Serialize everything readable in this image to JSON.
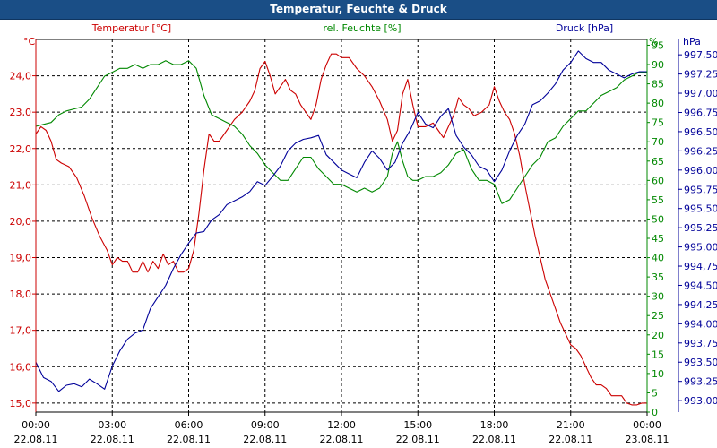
{
  "chart_data": {
    "type": "line",
    "title": "Temperatur, Feuchte & Druck",
    "x_ticks": [
      {
        "time": "00:00",
        "date": "22.08.11"
      },
      {
        "time": "03:00",
        "date": "22.08.11"
      },
      {
        "time": "06:00",
        "date": "22.08.11"
      },
      {
        "time": "09:00",
        "date": "22.08.11"
      },
      {
        "time": "12:00",
        "date": "22.08.11"
      },
      {
        "time": "15:00",
        "date": "22.08.11"
      },
      {
        "time": "18:00",
        "date": "22.08.11"
      },
      {
        "time": "21:00",
        "date": "22.08.11"
      },
      {
        "time": "00:00",
        "date": "23.08.11"
      }
    ],
    "xlim": [
      "22.08.11 00:00",
      "23.08.11 00:00"
    ],
    "grid": true,
    "axes": {
      "temperature": {
        "unit": "°C",
        "series_label": "Temperatur [°C]",
        "color": "#cc0000",
        "side": "left",
        "ylim": [
          14.75,
          25.0
        ],
        "ticks": [
          "15,0",
          "16,0",
          "17,0",
          "18,0",
          "19,0",
          "20,0",
          "21,0",
          "22,0",
          "23,0",
          "24,0"
        ]
      },
      "humidity": {
        "unit": "%",
        "series_label": "rel. Feuchte [%]",
        "color": "#008800",
        "side": "right-inner",
        "ylim": [
          0,
          96.5
        ],
        "ticks": [
          "0",
          "5",
          "10",
          "15",
          "20",
          "25",
          "30",
          "35",
          "40",
          "45",
          "50",
          "55",
          "60",
          "65",
          "70",
          "75",
          "80",
          "85",
          "90",
          "95"
        ]
      },
      "pressure": {
        "unit": "hPa",
        "series_label": "Druck [hPa]",
        "color": "#000099",
        "side": "right-outer",
        "ylim": [
          992.85,
          997.7
        ],
        "ticks": [
          "993,00",
          "993,25",
          "993,50",
          "993,75",
          "994,00",
          "994,25",
          "994,50",
          "994,75",
          "995,00",
          "995,25",
          "995,50",
          "995,75",
          "996,00",
          "996,25",
          "996,50",
          "996,75",
          "997,00",
          "997,25",
          "997,50"
        ]
      }
    },
    "series": [
      {
        "name": "Temperatur [°C]",
        "axis": "temperature",
        "color": "#cc0000",
        "points": [
          [
            0,
            22.4
          ],
          [
            0.2,
            22.6
          ],
          [
            0.4,
            22.5
          ],
          [
            0.6,
            22.2
          ],
          [
            0.8,
            21.7
          ],
          [
            1.0,
            21.6
          ],
          [
            1.3,
            21.5
          ],
          [
            1.6,
            21.2
          ],
          [
            1.9,
            20.7
          ],
          [
            2.2,
            20.1
          ],
          [
            2.5,
            19.6
          ],
          [
            2.8,
            19.2
          ],
          [
            3.0,
            18.8
          ],
          [
            3.2,
            19.0
          ],
          [
            3.4,
            18.9
          ],
          [
            3.6,
            18.9
          ],
          [
            3.8,
            18.6
          ],
          [
            4.0,
            18.6
          ],
          [
            4.2,
            18.9
          ],
          [
            4.4,
            18.6
          ],
          [
            4.6,
            18.9
          ],
          [
            4.8,
            18.7
          ],
          [
            5.0,
            19.1
          ],
          [
            5.2,
            18.8
          ],
          [
            5.4,
            18.9
          ],
          [
            5.6,
            18.6
          ],
          [
            5.8,
            18.6
          ],
          [
            6.0,
            18.7
          ],
          [
            6.2,
            19.2
          ],
          [
            6.4,
            20.2
          ],
          [
            6.6,
            21.4
          ],
          [
            6.8,
            22.4
          ],
          [
            7.0,
            22.2
          ],
          [
            7.2,
            22.2
          ],
          [
            7.5,
            22.5
          ],
          [
            7.8,
            22.8
          ],
          [
            8.1,
            23.0
          ],
          [
            8.4,
            23.3
          ],
          [
            8.6,
            23.6
          ],
          [
            8.8,
            24.2
          ],
          [
            9.0,
            24.4
          ],
          [
            9.2,
            24.0
          ],
          [
            9.4,
            23.5
          ],
          [
            9.6,
            23.7
          ],
          [
            9.8,
            23.9
          ],
          [
            10.0,
            23.6
          ],
          [
            10.2,
            23.5
          ],
          [
            10.4,
            23.2
          ],
          [
            10.6,
            23.0
          ],
          [
            10.8,
            22.8
          ],
          [
            11.0,
            23.2
          ],
          [
            11.2,
            23.9
          ],
          [
            11.4,
            24.3
          ],
          [
            11.6,
            24.6
          ],
          [
            11.8,
            24.6
          ],
          [
            12.0,
            24.5
          ],
          [
            12.3,
            24.5
          ],
          [
            12.6,
            24.2
          ],
          [
            12.9,
            24.0
          ],
          [
            13.2,
            23.7
          ],
          [
            13.5,
            23.3
          ],
          [
            13.8,
            22.8
          ],
          [
            14.0,
            22.2
          ],
          [
            14.2,
            22.5
          ],
          [
            14.4,
            23.5
          ],
          [
            14.6,
            23.9
          ],
          [
            14.8,
            23.2
          ],
          [
            15.0,
            22.6
          ],
          [
            15.3,
            22.6
          ],
          [
            15.6,
            22.7
          ],
          [
            15.8,
            22.5
          ],
          [
            16.0,
            22.3
          ],
          [
            16.2,
            22.6
          ],
          [
            16.4,
            22.9
          ],
          [
            16.6,
            23.4
          ],
          [
            16.8,
            23.2
          ],
          [
            17.0,
            23.1
          ],
          [
            17.2,
            22.9
          ],
          [
            17.5,
            23.0
          ],
          [
            17.8,
            23.2
          ],
          [
            18.0,
            23.7
          ],
          [
            18.2,
            23.3
          ],
          [
            18.4,
            23.0
          ],
          [
            18.6,
            22.8
          ],
          [
            18.8,
            22.4
          ],
          [
            19.0,
            21.8
          ],
          [
            19.2,
            21.0
          ],
          [
            19.4,
            20.3
          ],
          [
            19.6,
            19.6
          ],
          [
            19.8,
            19.0
          ],
          [
            20.0,
            18.4
          ],
          [
            20.2,
            18.0
          ],
          [
            20.4,
            17.6
          ],
          [
            20.6,
            17.2
          ],
          [
            20.8,
            16.9
          ],
          [
            21.0,
            16.6
          ],
          [
            21.2,
            16.5
          ],
          [
            21.4,
            16.3
          ],
          [
            21.6,
            16.0
          ],
          [
            21.8,
            15.7
          ],
          [
            22.0,
            15.5
          ],
          [
            22.2,
            15.5
          ],
          [
            22.4,
            15.4
          ],
          [
            22.6,
            15.2
          ],
          [
            22.8,
            15.2
          ],
          [
            23.0,
            15.2
          ],
          [
            23.2,
            15.0
          ],
          [
            23.4,
            14.95
          ],
          [
            23.6,
            14.95
          ],
          [
            23.8,
            15.0
          ],
          [
            24.0,
            15.0
          ]
        ]
      },
      {
        "name": "rel. Feuchte [%]",
        "axis": "humidity",
        "color": "#008800",
        "points": [
          [
            0,
            74
          ],
          [
            0.3,
            74.5
          ],
          [
            0.6,
            75
          ],
          [
            0.9,
            77
          ],
          [
            1.2,
            78
          ],
          [
            1.5,
            78.5
          ],
          [
            1.8,
            79
          ],
          [
            2.1,
            81
          ],
          [
            2.4,
            84
          ],
          [
            2.7,
            87
          ],
          [
            3.0,
            88
          ],
          [
            3.3,
            89
          ],
          [
            3.6,
            89
          ],
          [
            3.9,
            90
          ],
          [
            4.2,
            89
          ],
          [
            4.5,
            90
          ],
          [
            4.8,
            90
          ],
          [
            5.1,
            91
          ],
          [
            5.4,
            90
          ],
          [
            5.7,
            90
          ],
          [
            6.0,
            91
          ],
          [
            6.3,
            89
          ],
          [
            6.6,
            82
          ],
          [
            6.9,
            77
          ],
          [
            7.2,
            76
          ],
          [
            7.5,
            75
          ],
          [
            7.8,
            74
          ],
          [
            8.1,
            72
          ],
          [
            8.4,
            69
          ],
          [
            8.7,
            67
          ],
          [
            9.0,
            64
          ],
          [
            9.3,
            62
          ],
          [
            9.6,
            60
          ],
          [
            9.9,
            60
          ],
          [
            10.2,
            63
          ],
          [
            10.5,
            66
          ],
          [
            10.8,
            66
          ],
          [
            11.1,
            63
          ],
          [
            11.4,
            61
          ],
          [
            11.7,
            59
          ],
          [
            12.0,
            59
          ],
          [
            12.3,
            58
          ],
          [
            12.6,
            57
          ],
          [
            12.9,
            58
          ],
          [
            13.2,
            57
          ],
          [
            13.5,
            58
          ],
          [
            13.8,
            61
          ],
          [
            14.0,
            67
          ],
          [
            14.2,
            70
          ],
          [
            14.4,
            65
          ],
          [
            14.6,
            61
          ],
          [
            14.8,
            60
          ],
          [
            15.0,
            60
          ],
          [
            15.3,
            61
          ],
          [
            15.6,
            61
          ],
          [
            15.9,
            62
          ],
          [
            16.2,
            64
          ],
          [
            16.5,
            67
          ],
          [
            16.8,
            68
          ],
          [
            17.1,
            63
          ],
          [
            17.4,
            60
          ],
          [
            17.7,
            60
          ],
          [
            18.0,
            59
          ],
          [
            18.3,
            54
          ],
          [
            18.6,
            55
          ],
          [
            18.9,
            58
          ],
          [
            19.2,
            61
          ],
          [
            19.5,
            64
          ],
          [
            19.8,
            66
          ],
          [
            20.1,
            70
          ],
          [
            20.4,
            71
          ],
          [
            20.7,
            74
          ],
          [
            21.0,
            76
          ],
          [
            21.3,
            78
          ],
          [
            21.6,
            78
          ],
          [
            21.9,
            80
          ],
          [
            22.2,
            82
          ],
          [
            22.5,
            83
          ],
          [
            22.8,
            84
          ],
          [
            23.1,
            86
          ],
          [
            23.4,
            87
          ],
          [
            23.7,
            88
          ],
          [
            24.0,
            88
          ]
        ]
      },
      {
        "name": "Druck [hPa]",
        "axis": "pressure",
        "color": "#000099",
        "points": [
          [
            0,
            993.5
          ],
          [
            0.3,
            993.3
          ],
          [
            0.6,
            993.25
          ],
          [
            0.9,
            993.12
          ],
          [
            1.2,
            993.2
          ],
          [
            1.5,
            993.22
          ],
          [
            1.8,
            993.18
          ],
          [
            2.1,
            993.28
          ],
          [
            2.4,
            993.22
          ],
          [
            2.7,
            993.15
          ],
          [
            3.0,
            993.45
          ],
          [
            3.3,
            993.65
          ],
          [
            3.6,
            993.8
          ],
          [
            3.9,
            993.88
          ],
          [
            4.2,
            993.92
          ],
          [
            4.5,
            994.2
          ],
          [
            4.8,
            994.35
          ],
          [
            5.1,
            994.5
          ],
          [
            5.4,
            994.72
          ],
          [
            5.7,
            994.9
          ],
          [
            6.0,
            995.05
          ],
          [
            6.3,
            995.18
          ],
          [
            6.6,
            995.2
          ],
          [
            6.9,
            995.35
          ],
          [
            7.2,
            995.42
          ],
          [
            7.5,
            995.55
          ],
          [
            7.8,
            995.6
          ],
          [
            8.1,
            995.65
          ],
          [
            8.4,
            995.72
          ],
          [
            8.7,
            995.85
          ],
          [
            9.0,
            995.8
          ],
          [
            9.3,
            995.92
          ],
          [
            9.6,
            996.05
          ],
          [
            9.9,
            996.25
          ],
          [
            10.2,
            996.35
          ],
          [
            10.5,
            996.4
          ],
          [
            10.8,
            996.42
          ],
          [
            11.1,
            996.45
          ],
          [
            11.4,
            996.2
          ],
          [
            11.7,
            996.1
          ],
          [
            12.0,
            996.0
          ],
          [
            12.3,
            995.95
          ],
          [
            12.6,
            995.9
          ],
          [
            12.9,
            996.1
          ],
          [
            13.2,
            996.25
          ],
          [
            13.5,
            996.15
          ],
          [
            13.8,
            996.0
          ],
          [
            14.1,
            996.1
          ],
          [
            14.4,
            996.35
          ],
          [
            14.7,
            996.52
          ],
          [
            15.0,
            996.75
          ],
          [
            15.3,
            996.6
          ],
          [
            15.6,
            996.55
          ],
          [
            15.9,
            996.7
          ],
          [
            16.2,
            996.8
          ],
          [
            16.5,
            996.45
          ],
          [
            16.8,
            996.3
          ],
          [
            17.1,
            996.2
          ],
          [
            17.4,
            996.05
          ],
          [
            17.7,
            996.0
          ],
          [
            18.0,
            995.85
          ],
          [
            18.3,
            996.0
          ],
          [
            18.6,
            996.25
          ],
          [
            18.9,
            996.45
          ],
          [
            19.2,
            996.6
          ],
          [
            19.5,
            996.85
          ],
          [
            19.8,
            996.9
          ],
          [
            20.1,
            997.0
          ],
          [
            20.4,
            997.12
          ],
          [
            20.7,
            997.3
          ],
          [
            21.0,
            997.4
          ],
          [
            21.3,
            997.55
          ],
          [
            21.6,
            997.45
          ],
          [
            21.9,
            997.4
          ],
          [
            22.2,
            997.4
          ],
          [
            22.5,
            997.3
          ],
          [
            22.8,
            997.25
          ],
          [
            23.1,
            997.2
          ],
          [
            23.4,
            997.25
          ],
          [
            23.7,
            997.28
          ],
          [
            24.0,
            997.28
          ]
        ]
      }
    ]
  }
}
